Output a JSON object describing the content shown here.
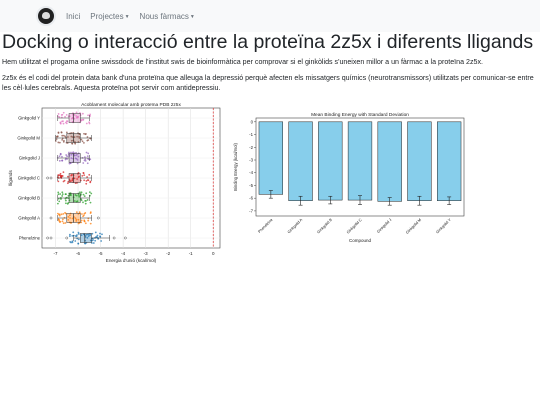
{
  "nav": {
    "home": "Inici",
    "projects": "Projectes",
    "drugs": "Nous fàrmacs",
    "logo_icon": "brain-logo-icon"
  },
  "page": {
    "title": "Docking o interacció entre la proteïna 2z5x i diferents lligands",
    "intro": "Hem utilitzat el progama online swissdock de l'institut swis de bioinformàtica per comprovar si el ginkòlids s'uneixen millor a un fàrmac a la proteïna 2z5x.",
    "description": "2z5x és el codi del protein data bank d'una proteïna que alleuga la depressió perquè afecten els missatgers químics (neurotransmissors) utilitzats per comunicar-se entre les cèl·lules cerebrals. Aquesta proteïna pot servir com antidepressiu."
  },
  "chart_data": [
    {
      "type": "box",
      "title": "Acoblament molecular amb proteïna PDB 2z5x",
      "xlabel": "Energia d'unió (kcal/mol)",
      "ylabel": "lligands",
      "xlim": [
        -7.6,
        0.3
      ],
      "xticks": [
        -7,
        -6,
        -5,
        -4,
        -3,
        -2,
        -1,
        0
      ],
      "reference_line_x": 0,
      "reference_line_color": "#d62728",
      "grid": true,
      "categories": [
        "Ginkgolid Y",
        "Ginkgolid M",
        "Ginkgolid J",
        "Ginkgolid C",
        "Ginkgolid B",
        "Ginkgolid A",
        "Phenelzine"
      ],
      "series": [
        {
          "category": "Ginkgolid Y",
          "color": "#e377c2",
          "min": -6.9,
          "q1": -6.4,
          "median": -6.2,
          "q3": -5.9,
          "max": -5.5
        },
        {
          "category": "Ginkgolid M",
          "color": "#8c564b",
          "min": -7.0,
          "q1": -6.5,
          "median": -6.2,
          "q3": -5.9,
          "max": -5.4
        },
        {
          "category": "Ginkgolid J",
          "color": "#9467bd",
          "min": -6.9,
          "q1": -6.4,
          "median": -6.2,
          "q3": -5.9,
          "max": -5.5
        },
        {
          "category": "Ginkgolid C",
          "color": "#d62728",
          "min": -6.9,
          "q1": -6.4,
          "median": -6.2,
          "q3": -5.9,
          "max": -5.4
        },
        {
          "category": "Ginkgolid B",
          "color": "#2ca02c",
          "min": -6.9,
          "q1": -6.4,
          "median": -6.2,
          "q3": -5.9,
          "max": -5.5
        },
        {
          "category": "Ginkgolid A",
          "color": "#ff7f0e",
          "min": -6.9,
          "q1": -6.5,
          "median": -6.2,
          "q3": -5.9,
          "max": -5.4
        },
        {
          "category": "Phenelzine",
          "color": "#1f77b4",
          "min": -6.2,
          "q1": -5.9,
          "median": -5.7,
          "q3": -5.4,
          "max": -4.6
        }
      ]
    },
    {
      "type": "bar",
      "title": "Mean Binding Energy with Standard Deviation",
      "xlabel": "Compound",
      "ylabel": "Binding Energy (kcal/mol)",
      "ylim": [
        -7.4,
        0.3
      ],
      "yticks": [
        -7,
        -6,
        -5,
        -4,
        -3,
        -2,
        -1,
        0
      ],
      "grid": false,
      "bar_color": "#87ceeb",
      "categories": [
        "Phenelzine",
        "Ginkgolid A",
        "Ginkgolid B",
        "Ginkgolid C",
        "Ginkgolid J",
        "Ginkgolid M",
        "Ginkgolid Y"
      ],
      "values": [
        -5.7,
        -6.2,
        -6.15,
        -6.15,
        -6.25,
        -6.2,
        -6.2
      ],
      "errors": [
        0.3,
        0.35,
        0.3,
        0.35,
        0.3,
        0.35,
        0.3
      ]
    }
  ]
}
